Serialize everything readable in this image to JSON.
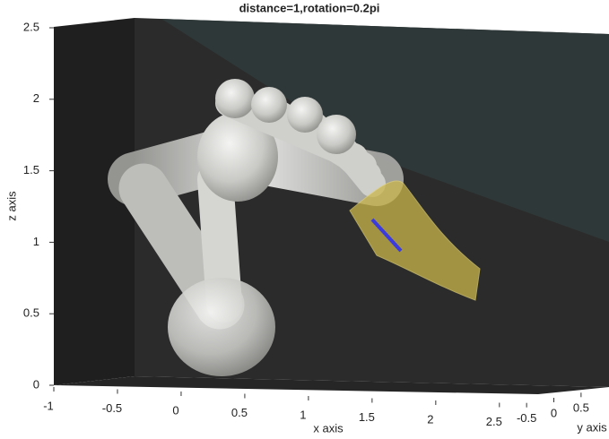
{
  "chart_data": {
    "type": "3d",
    "title": "distance=1,rotation=0.2pi",
    "x_label": "x axis",
    "y_label": "y axis",
    "z_label": "z axis",
    "xlim": [
      -1,
      2.6
    ],
    "xticks": [
      -1,
      -0.5,
      0,
      0.5,
      1,
      1.5,
      2,
      2.5
    ],
    "ylim": [
      -0.7,
      0.7
    ],
    "yticks": [
      -0.5,
      0,
      0.5
    ],
    "zlim": [
      0,
      2.5
    ],
    "zticks": [
      0,
      0.5,
      1,
      1.5,
      2,
      2.5
    ]
  }
}
